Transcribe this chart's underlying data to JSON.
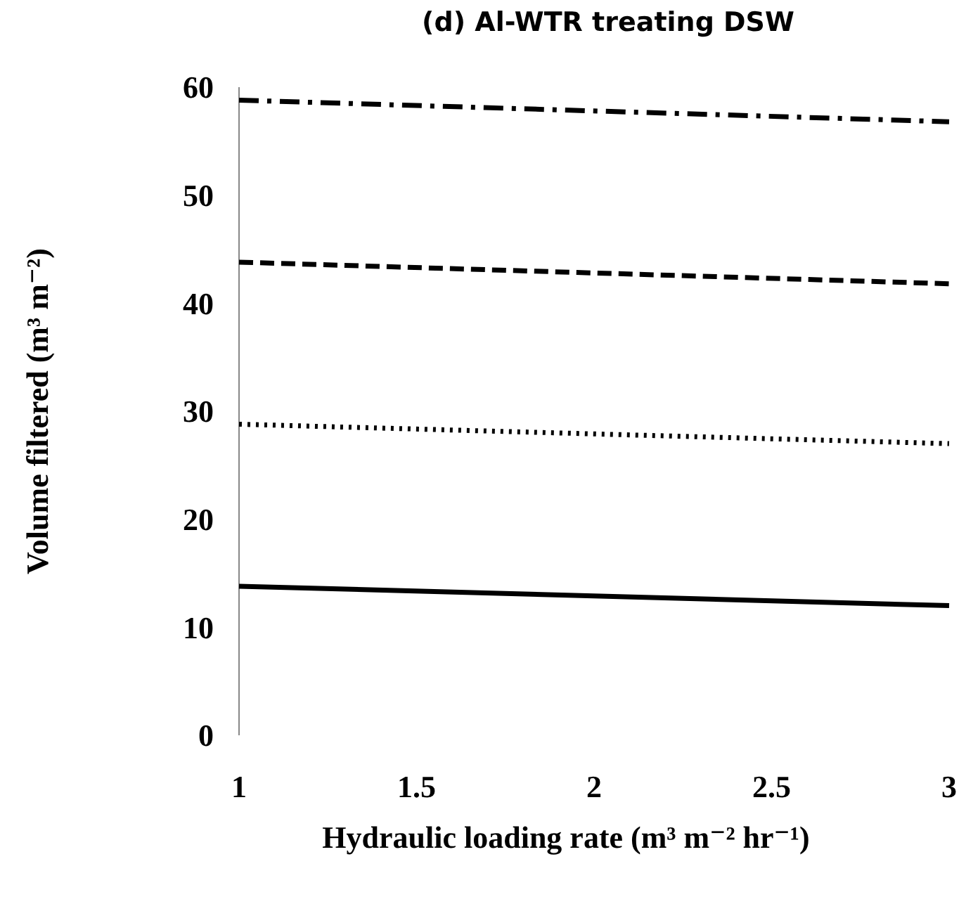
{
  "chart_data": {
    "type": "line",
    "title": "(d)  Al-WTR treating DSW",
    "xlabel": "Hydraulic loading rate (m³ m⁻² hr⁻¹)",
    "ylabel": "Volume filtered (m³ m⁻²)",
    "x": [
      1,
      3
    ],
    "xlim": [
      1,
      3
    ],
    "xticks": [
      1,
      1.5,
      2,
      2.5,
      3
    ],
    "ylim": [
      0,
      60
    ],
    "yticks": [
      0,
      10,
      20,
      30,
      40,
      50,
      60
    ],
    "grid": false,
    "marker": "none",
    "series": [
      {
        "color": "#000000",
        "line_style": "solid",
        "values": [
          13.8,
          12
        ]
      },
      {
        "color": "#000000",
        "line_style": "dotted",
        "values": [
          28.8,
          27
        ]
      },
      {
        "color": "#000000",
        "line_style": "dashed",
        "values": [
          43.8,
          41.8
        ]
      },
      {
        "color": "#000000",
        "line_style": "dashdot",
        "values": [
          58.8,
          56.8
        ]
      }
    ]
  }
}
